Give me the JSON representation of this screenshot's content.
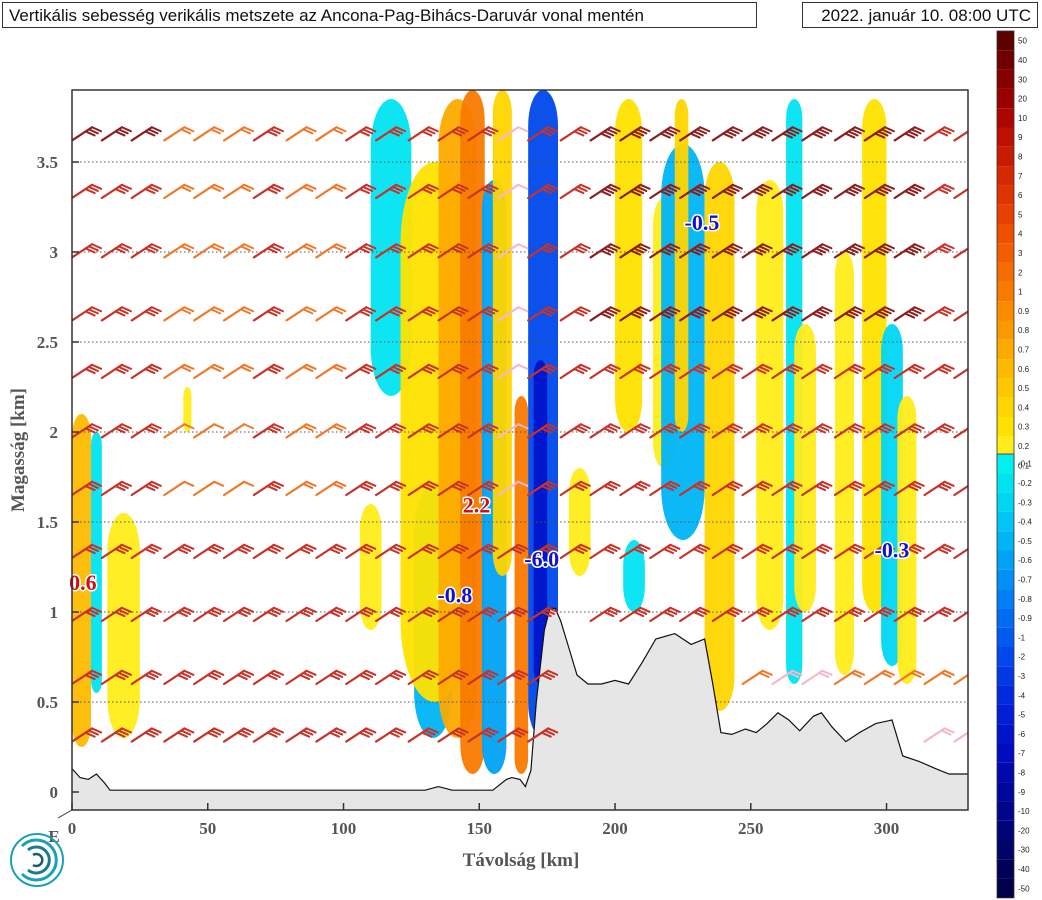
{
  "header": {
    "title": "Vertikális sebesség verikális metszete az Ancona-Pag-Bihács-Daruvár vonal mentén",
    "timestamp": "2022. január 10. 08:00 UTC"
  },
  "chart_data": {
    "type": "heatmap",
    "title": "Vertikális sebesség verikális metszete az Ancona-Pag-Bihács-Daruvár vonal mentén",
    "xlabel": "Távolság [km]",
    "ylabel": "Magasság [km]",
    "xlim": [
      0,
      330
    ],
    "ylim": [
      -0.1,
      3.9
    ],
    "x_ticks": [
      "0",
      "50",
      "100",
      "150",
      "200",
      "250",
      "300"
    ],
    "x_tick_values": [
      0,
      50,
      100,
      150,
      200,
      250,
      300
    ],
    "y_ticks": [
      "0",
      "0.5",
      "1",
      "1.5",
      "2",
      "2.5",
      "3",
      "3.5"
    ],
    "y_tick_values": [
      0,
      0.5,
      1,
      1.5,
      2,
      2.5,
      3,
      3.5
    ],
    "origin_label": "E",
    "grid": "horizontal dotted",
    "terrain": {
      "x": [
        0,
        3,
        6,
        9,
        12,
        14,
        20,
        60,
        100,
        130,
        135,
        140,
        155,
        160,
        162,
        165,
        167,
        169,
        171,
        174,
        176,
        178,
        180,
        183,
        186,
        190,
        195,
        200,
        205,
        210,
        215,
        222,
        228,
        233,
        236,
        239,
        243,
        248,
        252,
        256,
        260,
        264,
        268,
        273,
        276,
        280,
        285,
        290,
        296,
        302,
        306,
        312,
        318,
        323,
        327,
        330
      ],
      "y": [
        0.13,
        0.08,
        0.07,
        0.1,
        0.05,
        0.01,
        0.01,
        0.01,
        0.01,
        0.01,
        0.03,
        0.01,
        0.01,
        0.07,
        0.08,
        0.07,
        0.03,
        0.12,
        0.5,
        0.9,
        1.02,
        1.02,
        0.95,
        0.8,
        0.65,
        0.6,
        0.6,
        0.62,
        0.6,
        0.72,
        0.85,
        0.88,
        0.82,
        0.85,
        0.6,
        0.33,
        0.32,
        0.35,
        0.33,
        0.38,
        0.44,
        0.4,
        0.34,
        0.42,
        0.44,
        0.36,
        0.28,
        0.33,
        0.38,
        0.4,
        0.2,
        0.17,
        0.13,
        0.1,
        0.1,
        0.1
      ]
    },
    "contour_bands": [
      {
        "x": 1,
        "x0": 0,
        "x1": 7,
        "y0": 0.25,
        "y1": 2.1,
        "level": 0.6
      },
      {
        "x": 9,
        "x0": 7,
        "x1": 11,
        "y0": 0.55,
        "y1": 2.0,
        "level": -0.2
      },
      {
        "x": 18,
        "x0": 13,
        "x1": 25,
        "y0": 0.3,
        "y1": 1.55,
        "level": 0.2
      },
      {
        "x": 42,
        "x0": 41,
        "x1": 44,
        "y0": 2.0,
        "y1": 2.25,
        "level": 0.2
      },
      {
        "x": 110,
        "x0": 106,
        "x1": 114,
        "y0": 0.9,
        "y1": 1.6,
        "level": 0.2
      },
      {
        "x": 117,
        "x0": 110,
        "x1": 125,
        "y0": 2.2,
        "y1": 3.85,
        "level": -0.2
      },
      {
        "x": 133,
        "x0": 126,
        "x1": 140,
        "y0": 0.3,
        "y1": 1.7,
        "level": -0.5
      },
      {
        "x": 134,
        "x0": 121,
        "x1": 146,
        "y0": 0.5,
        "y1": 3.5,
        "level": 0.3
      },
      {
        "x": 142,
        "x0": 135,
        "x1": 149,
        "y0": 0.3,
        "y1": 3.85,
        "level": 0.7
      },
      {
        "x": 147,
        "x0": 143,
        "x1": 152,
        "y0": 0.1,
        "y1": 3.9,
        "level": 1.5
      },
      {
        "x": 155,
        "x0": 151,
        "x1": 160,
        "y0": 0.1,
        "y1": 3.4,
        "level": -0.6
      },
      {
        "x": 159,
        "x0": 155,
        "x1": 162,
        "y0": 1.2,
        "y1": 3.9,
        "level": 0.4
      },
      {
        "x": 166,
        "x0": 163,
        "x1": 168,
        "y0": 0.1,
        "y1": 2.2,
        "level": 1.0
      },
      {
        "x": 173,
        "x0": 168,
        "x1": 179,
        "y0": 0.3,
        "y1": 3.9,
        "level": -2.0
      },
      {
        "x": 172,
        "x0": 170,
        "x1": 175,
        "y0": 0.6,
        "y1": 2.4,
        "level": -6.0
      },
      {
        "x": 187,
        "x0": 183,
        "x1": 191,
        "y0": 1.2,
        "y1": 1.8,
        "level": 0.2
      },
      {
        "x": 205,
        "x0": 200,
        "x1": 210,
        "y0": 2.0,
        "y1": 3.85,
        "level": 0.3
      },
      {
        "x": 207,
        "x0": 203,
        "x1": 211,
        "y0": 1.0,
        "y1": 1.4,
        "level": -0.2
      },
      {
        "x": 218,
        "x0": 214,
        "x1": 222,
        "y0": 1.8,
        "y1": 3.3,
        "level": 0.2
      },
      {
        "x": 226,
        "x0": 217,
        "x1": 233,
        "y0": 1.4,
        "y1": 3.6,
        "level": -0.5
      },
      {
        "x": 224,
        "x0": 222,
        "x1": 227,
        "y0": 2.0,
        "y1": 3.85,
        "level": 0.4
      },
      {
        "x": 238,
        "x0": 233,
        "x1": 244,
        "y0": 0.45,
        "y1": 3.5,
        "level": 0.4
      },
      {
        "x": 258,
        "x0": 252,
        "x1": 262,
        "y0": 0.9,
        "y1": 3.4,
        "level": 0.2
      },
      {
        "x": 266,
        "x0": 263,
        "x1": 269,
        "y0": 0.6,
        "y1": 3.85,
        "level": -0.2
      },
      {
        "x": 270,
        "x0": 266,
        "x1": 274,
        "y0": 1.0,
        "y1": 2.6,
        "level": 0.2
      },
      {
        "x": 285,
        "x0": 281,
        "x1": 288,
        "y0": 0.65,
        "y1": 3.0,
        "level": 0.2
      },
      {
        "x": 296,
        "x0": 291,
        "x1": 300,
        "y0": 1.0,
        "y1": 3.85,
        "level": 0.3
      },
      {
        "x": 302,
        "x0": 298,
        "x1": 306,
        "y0": 0.7,
        "y1": 2.6,
        "level": -0.3
      },
      {
        "x": 307,
        "x0": 304,
        "x1": 311,
        "y0": 0.6,
        "y1": 2.2,
        "level": 0.2
      }
    ],
    "annotations": [
      {
        "text": "0.6",
        "x": 4,
        "y": 1.15,
        "color": "#d01010"
      },
      {
        "text": "2.2",
        "x": 149,
        "y": 1.58,
        "color": "#d01010"
      },
      {
        "text": "-0.8",
        "x": 141,
        "y": 1.08,
        "color": "#1010d0"
      },
      {
        "text": "-6.0",
        "x": 173,
        "y": 1.28,
        "color": "#1010d0"
      },
      {
        "text": "-0.5",
        "x": 232,
        "y": 3.15,
        "color": "#1010d0"
      },
      {
        "text": "-0.3",
        "x": 302,
        "y": 1.33,
        "color": "#1010d0"
      }
    ],
    "wind_barbs": {
      "x_positions": [
        0,
        11,
        22,
        34,
        45,
        56,
        67,
        79,
        90,
        101,
        112,
        124,
        135,
        146,
        157,
        168,
        180,
        191,
        202,
        213,
        224,
        236,
        247,
        258,
        269,
        281,
        292,
        303,
        314,
        325
      ],
      "levels": [
        0.28,
        0.6,
        0.95,
        1.3,
        1.65,
        1.97,
        2.3,
        2.62,
        2.97,
        3.3,
        3.62
      ],
      "colors": {
        "weak": "#f4b8c8",
        "light": "#f07828",
        "moderate": "#c83228",
        "strong": "#8c1e1e"
      }
    },
    "colorbar": {
      "positive_labels": [
        "50",
        "40",
        "30",
        "20",
        "10",
        "9",
        "8",
        "7",
        "6",
        "5",
        "4",
        "3",
        "2",
        "1",
        "0.9",
        "0.8",
        "0.7",
        "0.6",
        "0.5",
        "0.4",
        "0.3",
        "0.2",
        "0.1"
      ],
      "positive_colors": [
        "#5c0000",
        "#700000",
        "#860000",
        "#9a0000",
        "#ad0500",
        "#bd1000",
        "#c81c00",
        "#d42800",
        "#de3400",
        "#e84000",
        "#ee5000",
        "#f25d00",
        "#f56c00",
        "#f87b00",
        "#fa8a00",
        "#fb9a00",
        "#fcaa00",
        "#fdba00",
        "#fec800",
        "#fed500",
        "#ffe100",
        "#ffec1a",
        "#fff54a"
      ],
      "negative_labels": [
        "-0.1",
        "-0.2",
        "-0.3",
        "-0.4",
        "-0.5",
        "-0.6",
        "-0.7",
        "-0.8",
        "-0.9",
        "-1",
        "-2",
        "-3",
        "-4",
        "-5",
        "-6",
        "-7",
        "-8",
        "-9",
        "-10",
        "-20",
        "-30",
        "-40",
        "-50"
      ],
      "negative_colors": [
        "#00f0f0",
        "#00e4f2",
        "#00d6f4",
        "#00c6f5",
        "#00b4f6",
        "#00a2f6",
        "#0090f6",
        "#007ef5",
        "#006cf3",
        "#005af0",
        "#0048ec",
        "#0038e6",
        "#002ae0",
        "#001ed8",
        "#0014cc",
        "#000cbe",
        "#0008ae",
        "#00069c",
        "#00058a",
        "#000478",
        "#000368",
        "#000258",
        "#000148"
      ]
    }
  }
}
